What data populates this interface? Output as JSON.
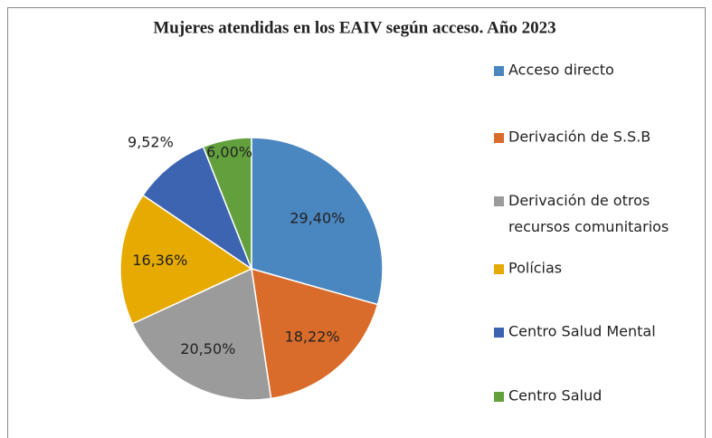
{
  "chart_data": {
    "type": "pie",
    "title": "Mujeres atendidas en los EAIV según acceso.  Año 2023",
    "categories": [
      "Acceso directo",
      "Derivación de S.S.B",
      "Derivación de otros recursos comunitarios",
      "Polícias",
      "Centro Salud Mental",
      "Centro Salud"
    ],
    "values": [
      29.4,
      18.22,
      20.5,
      16.36,
      9.52,
      6.0
    ],
    "value_labels": [
      "29,40%",
      "18,22%",
      "20,50%",
      "16,36%",
      "9,52%",
      "6,00%"
    ],
    "colors": [
      "#4a86c0",
      "#d96c2a",
      "#9b9b9b",
      "#e6aa00",
      "#3d64b0",
      "#62a03e"
    ],
    "legend": "right"
  }
}
